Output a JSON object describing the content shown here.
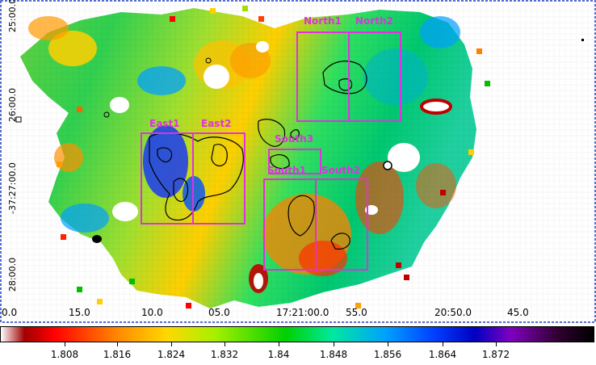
{
  "map": {
    "dec_ticks": [
      "25:00.0",
      "26:00.0",
      "-37:27:00.0",
      "28:00.0"
    ],
    "ra_ticks": [
      "0.0",
      "15.0",
      "10.0",
      "05.0",
      "17:21:00.0",
      "55.0",
      "20:50.0",
      "45.0"
    ],
    "region_labels": [
      "North1",
      "North2",
      "East1",
      "East2",
      "South3",
      "South1",
      "South2"
    ],
    "region_color": "#e030e0",
    "contour_color": "#000000"
  },
  "colorbar": {
    "ticks": [
      "1.808",
      "1.816",
      "1.824",
      "1.832",
      "1.84",
      "1.848",
      "1.856",
      "1.864",
      "1.872"
    ],
    "stops": [
      "#ffffff",
      "#a00000",
      "#ff0000",
      "#ff8c00",
      "#ffd800",
      "#a8f000",
      "#00d000",
      "#00e8a0",
      "#00a0ff",
      "#0040ff",
      "#0000c0",
      "#8000c0",
      "#300030",
      "#000000"
    ]
  }
}
